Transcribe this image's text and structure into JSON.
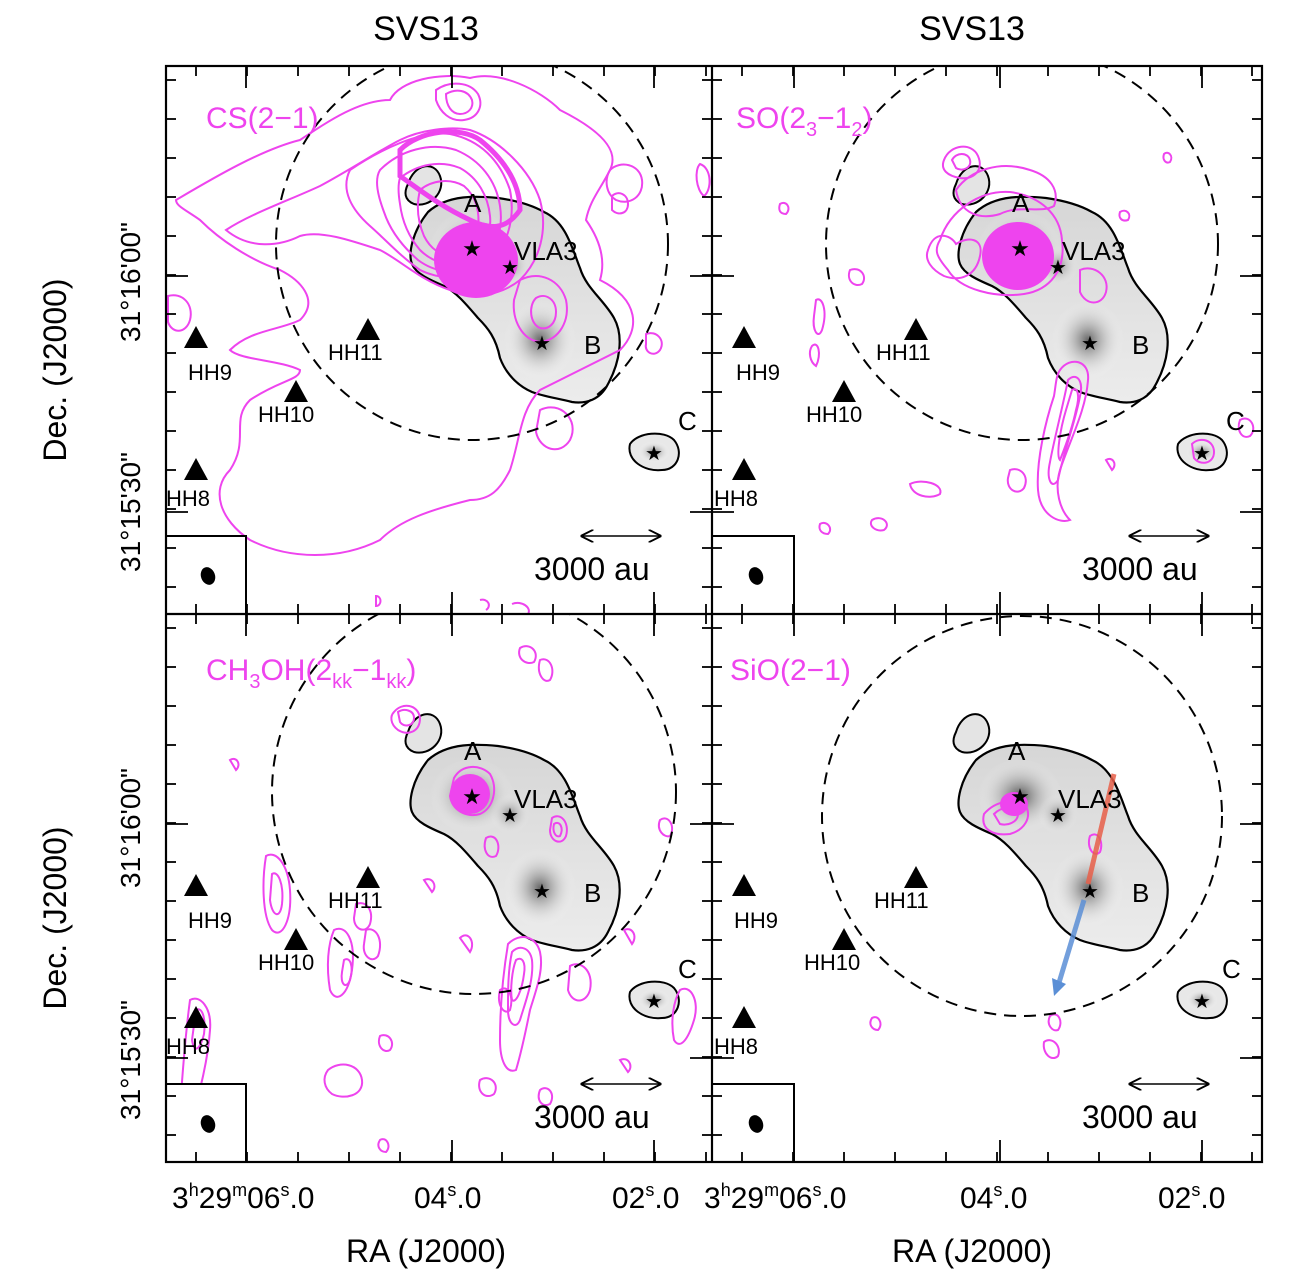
{
  "colors": {
    "molecule": "#ee44ee",
    "continuum": "#000000",
    "redshifted": "#e8604a",
    "blueshifted": "#5b8fd6"
  },
  "columns": [
    {
      "title": "SVS13"
    },
    {
      "title": "SVS13"
    }
  ],
  "axes": {
    "xlabel": "RA (J2000)",
    "ylabel": "Dec. (J2000)",
    "xticks": [
      {
        "h": "3",
        "hsup": "h",
        "m": "29",
        "msup": "m",
        "s": "06",
        "ssup": "s",
        "frac": ".0"
      },
      {
        "s": "04",
        "ssup": "s",
        "frac": ".0"
      },
      {
        "s": "02",
        "ssup": "s",
        "frac": ".0"
      }
    ],
    "yticks": [
      "31°16'00\"",
      "31°15'30\""
    ]
  },
  "panels": [
    {
      "molecule": "CS(2−1)",
      "molecule_base": "CS(2−1)",
      "scalebar": "3000 au"
    },
    {
      "molecule_base": "SO(2",
      "molecule_sub1": "3",
      "molecule_mid": "−1",
      "molecule_sub2": "2",
      "molecule_end": ")",
      "scalebar": "3000 au"
    },
    {
      "molecule_base": "CH",
      "molecule_sub1": "3",
      "molecule_mid": "OH(2",
      "molecule_sub2": "kk",
      "molecule_mid2": "−1",
      "molecule_sub3": "kk",
      "molecule_end": ")",
      "scalebar": "3000 au"
    },
    {
      "molecule": "SiO(2−1)",
      "scalebar": "3000 au"
    }
  ],
  "sources": {
    "A": "A",
    "VLA3": "VLA3",
    "B": "B",
    "C": "C"
  },
  "hh_objects": {
    "HH8": "HH8",
    "HH9": "HH9",
    "HH10": "HH10",
    "HH11": "HH11"
  }
}
